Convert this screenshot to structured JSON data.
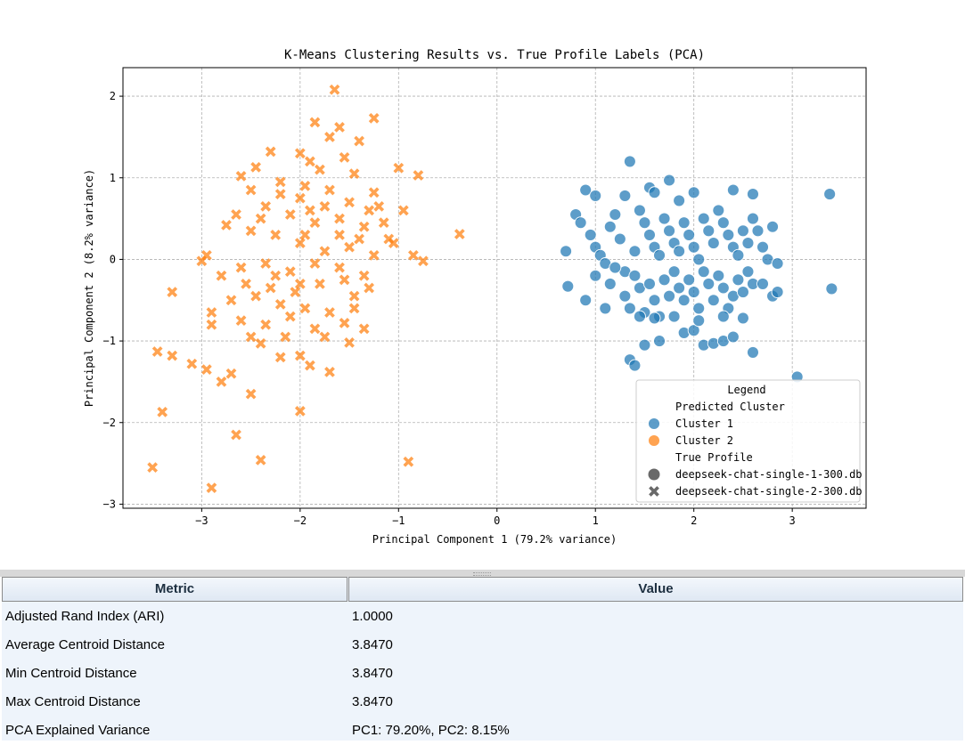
{
  "figure": {
    "chart_data": {
      "type": "scatter",
      "title": "K-Means Clustering Results vs. True Profile Labels (PCA)",
      "xlabel": "Principal Component 1 (79.2% variance)",
      "ylabel": "Principal Component 2 (8.2% variance)",
      "xlim": [
        -3.8,
        3.75
      ],
      "ylim": [
        -3.05,
        2.35
      ],
      "xticks": [
        -3,
        -2,
        -1,
        0,
        1,
        2,
        3
      ],
      "yticks": [
        -3,
        -2,
        -1,
        0,
        1,
        2
      ],
      "xtick_labels": [
        "−3",
        "−2",
        "−1",
        "0",
        "1",
        "2",
        "3"
      ],
      "ytick_labels": [
        "−3",
        "−2",
        "−1",
        "0",
        "1",
        "2"
      ],
      "grid": true,
      "legend": {
        "title": "Legend",
        "placement": "lower right",
        "entries": [
          {
            "label": "Predicted Cluster",
            "kind": "header"
          },
          {
            "label": "Cluster 1",
            "kind": "color",
            "color": "#1f77b4"
          },
          {
            "label": "Cluster 2",
            "kind": "color",
            "color": "#ff7f0e"
          },
          {
            "label": "True Profile",
            "kind": "header"
          },
          {
            "label": "deepseek-chat-single-1-300.db",
            "kind": "marker",
            "marker": "circle"
          },
          {
            "label": "deepseek-chat-single-2-300.db",
            "kind": "marker",
            "marker": "x"
          }
        ]
      },
      "series": [
        {
          "name": "Cluster 1 / deepseek-chat-single-1-300.db",
          "color": "#1f77b4",
          "marker": "circle",
          "points": [
            [
              0.9,
              0.85
            ],
            [
              1.0,
              0.78
            ],
            [
              1.3,
              0.78
            ],
            [
              1.35,
              1.2
            ],
            [
              1.55,
              0.88
            ],
            [
              1.6,
              0.82
            ],
            [
              1.75,
              0.97
            ],
            [
              1.85,
              0.72
            ],
            [
              2.0,
              0.82
            ],
            [
              2.4,
              0.85
            ],
            [
              2.6,
              0.8
            ],
            [
              3.38,
              0.8
            ],
            [
              3.4,
              -0.36
            ],
            [
              0.7,
              0.1
            ],
            [
              0.72,
              -0.33
            ],
            [
              0.8,
              0.55
            ],
            [
              0.85,
              0.45
            ],
            [
              0.95,
              0.3
            ],
            [
              1.0,
              0.15
            ],
            [
              1.05,
              0.05
            ],
            [
              1.1,
              -0.05
            ],
            [
              1.15,
              0.4
            ],
            [
              1.2,
              0.55
            ],
            [
              1.25,
              0.25
            ],
            [
              1.3,
              -0.15
            ],
            [
              1.4,
              0.1
            ],
            [
              1.45,
              0.6
            ],
            [
              1.5,
              0.45
            ],
            [
              1.55,
              0.3
            ],
            [
              1.6,
              0.15
            ],
            [
              1.65,
              0.05
            ],
            [
              1.7,
              0.5
            ],
            [
              1.75,
              0.35
            ],
            [
              1.8,
              0.2
            ],
            [
              1.85,
              0.1
            ],
            [
              1.9,
              0.45
            ],
            [
              1.95,
              0.3
            ],
            [
              2.0,
              0.15
            ],
            [
              2.05,
              0.0
            ],
            [
              2.1,
              0.5
            ],
            [
              2.15,
              0.35
            ],
            [
              2.2,
              0.2
            ],
            [
              2.25,
              0.6
            ],
            [
              2.3,
              0.45
            ],
            [
              2.35,
              0.3
            ],
            [
              2.4,
              0.15
            ],
            [
              2.45,
              0.05
            ],
            [
              2.5,
              0.35
            ],
            [
              2.55,
              0.2
            ],
            [
              2.6,
              0.5
            ],
            [
              2.65,
              0.35
            ],
            [
              2.7,
              0.15
            ],
            [
              2.75,
              0.0
            ],
            [
              2.8,
              0.4
            ],
            [
              2.85,
              -0.05
            ],
            [
              0.9,
              -0.5
            ],
            [
              1.0,
              -0.2
            ],
            [
              1.1,
              -0.6
            ],
            [
              1.15,
              -0.3
            ],
            [
              1.2,
              -0.1
            ],
            [
              1.3,
              -0.45
            ],
            [
              1.35,
              -0.6
            ],
            [
              1.4,
              -0.2
            ],
            [
              1.45,
              -0.35
            ],
            [
              1.5,
              -0.65
            ],
            [
              1.55,
              -0.3
            ],
            [
              1.6,
              -0.5
            ],
            [
              1.65,
              -0.7
            ],
            [
              1.7,
              -0.25
            ],
            [
              1.75,
              -0.45
            ],
            [
              1.8,
              -0.15
            ],
            [
              1.85,
              -0.35
            ],
            [
              1.9,
              -0.5
            ],
            [
              1.95,
              -0.25
            ],
            [
              2.0,
              -0.4
            ],
            [
              2.05,
              -0.6
            ],
            [
              2.1,
              -0.15
            ],
            [
              2.15,
              -0.3
            ],
            [
              2.2,
              -0.5
            ],
            [
              2.25,
              -0.2
            ],
            [
              2.3,
              -0.35
            ],
            [
              2.35,
              -0.6
            ],
            [
              2.4,
              -0.45
            ],
            [
              2.45,
              -0.25
            ],
            [
              2.5,
              -0.4
            ],
            [
              2.55,
              -0.15
            ],
            [
              2.6,
              -0.3
            ],
            [
              2.7,
              -0.3
            ],
            [
              2.8,
              -0.45
            ],
            [
              2.85,
              -0.4
            ],
            [
              1.35,
              -1.23
            ],
            [
              1.4,
              -1.3
            ],
            [
              1.5,
              -1.05
            ],
            [
              1.65,
              -1.0
            ],
            [
              1.9,
              -0.9
            ],
            [
              2.0,
              -0.87
            ],
            [
              2.1,
              -1.05
            ],
            [
              2.2,
              -1.03
            ],
            [
              2.3,
              -1.0
            ],
            [
              2.4,
              -0.95
            ],
            [
              2.6,
              -1.14
            ],
            [
              3.05,
              -1.44
            ],
            [
              1.45,
              -0.7
            ],
            [
              1.6,
              -0.72
            ],
            [
              1.8,
              -0.7
            ],
            [
              2.05,
              -0.75
            ],
            [
              2.3,
              -0.7
            ],
            [
              2.5,
              -0.72
            ]
          ]
        },
        {
          "name": "Cluster 2 / deepseek-chat-single-2-300.db",
          "color": "#ff7f0e",
          "marker": "x",
          "points": [
            [
              -1.65,
              2.08
            ],
            [
              -1.85,
              1.68
            ],
            [
              -1.6,
              1.62
            ],
            [
              -1.7,
              1.5
            ],
            [
              -1.4,
              1.45
            ],
            [
              -1.25,
              1.73
            ],
            [
              -1.55,
              1.25
            ],
            [
              -2.3,
              1.32
            ],
            [
              -2.0,
              1.3
            ],
            [
              -1.9,
              1.2
            ],
            [
              -2.45,
              1.13
            ],
            [
              -1.0,
              1.12
            ],
            [
              -0.8,
              1.03
            ],
            [
              -2.6,
              1.02
            ],
            [
              -1.8,
              1.1
            ],
            [
              -1.45,
              1.05
            ],
            [
              -1.25,
              0.82
            ],
            [
              -2.5,
              0.85
            ],
            [
              -2.2,
              0.8
            ],
            [
              -2.0,
              0.75
            ],
            [
              -1.75,
              0.65
            ],
            [
              -1.5,
              0.7
            ],
            [
              -1.2,
              0.65
            ],
            [
              -0.95,
              0.6
            ],
            [
              -2.65,
              0.55
            ],
            [
              -2.4,
              0.5
            ],
            [
              -2.1,
              0.55
            ],
            [
              -1.85,
              0.45
            ],
            [
              -1.6,
              0.5
            ],
            [
              -1.35,
              0.4
            ],
            [
              -1.1,
              0.25
            ],
            [
              -2.5,
              0.35
            ],
            [
              -2.25,
              0.3
            ],
            [
              -2.0,
              0.2
            ],
            [
              -1.75,
              0.1
            ],
            [
              -1.5,
              0.15
            ],
            [
              -1.25,
              0.05
            ],
            [
              -2.95,
              0.05
            ],
            [
              -2.6,
              -0.1
            ],
            [
              -2.35,
              -0.05
            ],
            [
              -2.1,
              -0.15
            ],
            [
              -1.85,
              -0.05
            ],
            [
              -1.6,
              -0.1
            ],
            [
              -1.35,
              -0.2
            ],
            [
              -0.85,
              0.05
            ],
            [
              -0.75,
              -0.02
            ],
            [
              -0.38,
              0.31
            ],
            [
              -2.8,
              -0.2
            ],
            [
              -2.55,
              -0.3
            ],
            [
              -2.3,
              -0.35
            ],
            [
              -2.05,
              -0.4
            ],
            [
              -1.8,
              -0.3
            ],
            [
              -1.55,
              -0.25
            ],
            [
              -1.3,
              -0.35
            ],
            [
              -3.3,
              -0.4
            ],
            [
              -2.7,
              -0.5
            ],
            [
              -2.45,
              -0.45
            ],
            [
              -2.2,
              -0.55
            ],
            [
              -1.95,
              -0.6
            ],
            [
              -1.7,
              -0.65
            ],
            [
              -1.45,
              -0.6
            ],
            [
              -2.9,
              -0.65
            ],
            [
              -2.6,
              -0.75
            ],
            [
              -2.35,
              -0.8
            ],
            [
              -2.1,
              -0.7
            ],
            [
              -1.85,
              -0.85
            ],
            [
              -1.55,
              -0.78
            ],
            [
              -2.9,
              -0.8
            ],
            [
              -2.5,
              -0.95
            ],
            [
              -2.4,
              -1.03
            ],
            [
              -1.5,
              -1.02
            ],
            [
              -3.45,
              -1.13
            ],
            [
              -3.3,
              -1.18
            ],
            [
              -3.1,
              -1.28
            ],
            [
              -2.95,
              -1.35
            ],
            [
              -2.7,
              -1.4
            ],
            [
              -2.8,
              -1.5
            ],
            [
              -2.2,
              -1.2
            ],
            [
              -2.0,
              -1.18
            ],
            [
              -1.9,
              -1.3
            ],
            [
              -1.7,
              -1.38
            ],
            [
              -2.5,
              -1.65
            ],
            [
              -3.4,
              -1.87
            ],
            [
              -2.0,
              -1.86
            ],
            [
              -2.65,
              -2.15
            ],
            [
              -2.4,
              -2.46
            ],
            [
              -3.5,
              -2.55
            ],
            [
              -2.9,
              -2.8
            ],
            [
              -0.9,
              -2.48
            ],
            [
              -2.2,
              0.95
            ],
            [
              -1.95,
              0.9
            ],
            [
              -1.7,
              0.85
            ],
            [
              -2.35,
              0.65
            ],
            [
              -1.4,
              0.25
            ],
            [
              -1.05,
              0.2
            ],
            [
              -2.75,
              0.42
            ],
            [
              -3.0,
              -0.02
            ],
            [
              -1.45,
              -0.45
            ],
            [
              -2.25,
              -0.2
            ],
            [
              -1.95,
              0.3
            ],
            [
              -1.15,
              0.45
            ],
            [
              -1.9,
              0.6
            ],
            [
              -1.3,
              0.6
            ],
            [
              -2.0,
              -0.3
            ],
            [
              -1.6,
              0.3
            ],
            [
              -2.15,
              -0.95
            ],
            [
              -1.75,
              -0.95
            ],
            [
              -1.35,
              -0.85
            ]
          ]
        }
      ]
    }
  },
  "metrics": {
    "headers": [
      "Metric",
      "Value"
    ],
    "rows": [
      [
        "Adjusted Rand Index (ARI)",
        "1.0000"
      ],
      [
        "Average Centroid Distance",
        "3.8470"
      ],
      [
        "Min Centroid Distance",
        "3.8470"
      ],
      [
        "Max Centroid Distance",
        "3.8470"
      ],
      [
        "PCA Explained Variance",
        "PC1: 79.20%, PC2: 8.15%"
      ]
    ]
  }
}
